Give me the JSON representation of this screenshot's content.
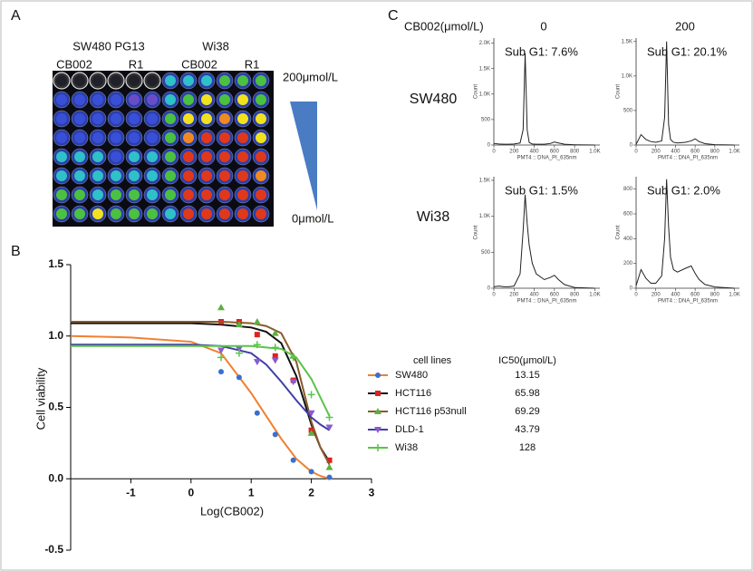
{
  "panel_labels": {
    "a": "A",
    "b": "B",
    "c": "C"
  },
  "plate": {
    "groups": [
      "SW480 PG13",
      "Wi38"
    ],
    "columns": [
      "CB002",
      "R1",
      "CB002",
      "R1"
    ],
    "high_label": "200μmol/L",
    "low_label": "0μmol/L"
  },
  "panel_c": {
    "concentration_label": "CB002(μmol/L)",
    "columns": [
      "0",
      "200"
    ],
    "rows": [
      "SW480",
      "Wi38"
    ]
  },
  "chart_data": [
    {
      "type": "dose_response",
      "x_label": "Log(CB002)",
      "y_label": "Cell viability",
      "xlim": [
        -2,
        3
      ],
      "ylim": [
        -0.5,
        1.5
      ],
      "xticks": [
        -1,
        0,
        1,
        2,
        3
      ],
      "yticks": [
        -0.5,
        {
          "value": 0,
          "label": "0.0"
        },
        0.5,
        {
          "value": 1,
          "label": "1.0"
        },
        1.5
      ],
      "legend_header": [
        "cell lines",
        "IC50(μmol/L)"
      ],
      "x": [
        0.5,
        0.8,
        1.1,
        1.4,
        1.7,
        2.0,
        2.3
      ],
      "fit_x": [
        -2,
        -1,
        0,
        0.5,
        1,
        1.25,
        1.5,
        1.75,
        2,
        2.15,
        2.3
      ],
      "series": [
        {
          "name": "SW480",
          "color": "#f08030",
          "marker_color": "#3a6fd0",
          "marker": "circle",
          "ic50": 13.15,
          "values": [
            0.75,
            0.71,
            0.46,
            0.31,
            0.13,
            0.05,
            0.01
          ],
          "fit": [
            1.0,
            0.99,
            0.96,
            0.88,
            0.6,
            0.44,
            0.28,
            0.14,
            0.05,
            0.02,
            0.0
          ]
        },
        {
          "name": "HCT116",
          "color": "#111111",
          "marker_color": "#e02020",
          "marker": "square",
          "ic50": 65.98,
          "values": [
            1.1,
            1.1,
            1.01,
            0.86,
            0.69,
            0.34,
            0.13
          ],
          "fit": [
            1.09,
            1.09,
            1.09,
            1.08,
            1.06,
            1.03,
            0.95,
            0.72,
            0.38,
            0.22,
            0.12
          ]
        },
        {
          "name": "HCT116 p53null",
          "color": "#8a5a2a",
          "marker_color": "#5cb040",
          "marker": "triangle",
          "ic50": 69.29,
          "values": [
            1.2,
            1.08,
            1.1,
            1.02,
            0.86,
            0.32,
            0.08
          ],
          "fit": [
            1.1,
            1.1,
            1.1,
            1.1,
            1.09,
            1.07,
            1.02,
            0.82,
            0.4,
            0.22,
            0.1
          ]
        },
        {
          "name": "DLD-1",
          "color": "#3f3fa8",
          "marker_color": "#8a5ad0",
          "marker": "triangle-down",
          "ic50": 43.79,
          "values": [
            0.9,
            0.91,
            0.82,
            0.83,
            0.68,
            0.46,
            0.36
          ],
          "fit": [
            0.94,
            0.94,
            0.94,
            0.93,
            0.88,
            0.8,
            0.68,
            0.55,
            0.43,
            0.38,
            0.34
          ]
        },
        {
          "name": "Wi38",
          "color": "#5cc24b",
          "marker_color": "#5cc24b",
          "marker": "plus",
          "ic50": 128,
          "values": [
            0.85,
            0.88,
            0.94,
            0.92,
            0.85,
            0.59,
            0.43
          ],
          "fit": [
            0.93,
            0.93,
            0.93,
            0.93,
            0.93,
            0.92,
            0.91,
            0.85,
            0.7,
            0.57,
            0.44
          ]
        }
      ]
    },
    {
      "type": "histogram_line",
      "annotation": "Sub G1: 7.6%",
      "x_label": "PMT4 :: DNA_PI_635nm",
      "y_label": "Count",
      "xlim": [
        0,
        1050
      ],
      "ylim": [
        0,
        2100
      ],
      "xticks": [
        0,
        200,
        400,
        600,
        800,
        {
          "value": 1000,
          "label": "1.0K"
        }
      ],
      "yticks": [
        0,
        500,
        {
          "value": 1000,
          "label": "1.0K"
        },
        {
          "value": 1500,
          "label": "1.5K"
        },
        {
          "value": 2000,
          "label": "2.0K"
        }
      ],
      "x": [
        0,
        50,
        100,
        150,
        200,
        260,
        290,
        310,
        330,
        350,
        380,
        420,
        500,
        560,
        600,
        640,
        700,
        800,
        1000
      ],
      "values": [
        30,
        20,
        15,
        15,
        20,
        40,
        300,
        1800,
        300,
        50,
        20,
        15,
        15,
        30,
        60,
        40,
        15,
        5,
        0
      ]
    },
    {
      "type": "histogram_line",
      "annotation": "Sub G1: 20.1%",
      "x_label": "PMT4 :: DNA_PI_635nm",
      "y_label": "Count",
      "xlim": [
        0,
        1050
      ],
      "ylim": [
        0,
        1550
      ],
      "xticks": [
        0,
        200,
        400,
        600,
        800,
        {
          "value": 1000,
          "label": "1.0K"
        }
      ],
      "yticks": [
        0,
        500,
        {
          "value": 1000,
          "label": "1.0K"
        },
        {
          "value": 1500,
          "label": "1.5K"
        }
      ],
      "x": [
        0,
        50,
        100,
        150,
        200,
        260,
        290,
        310,
        330,
        350,
        380,
        420,
        500,
        560,
        600,
        640,
        700,
        800,
        1000
      ],
      "values": [
        10,
        150,
        80,
        50,
        40,
        60,
        400,
        1500,
        300,
        80,
        40,
        30,
        40,
        60,
        90,
        50,
        20,
        5,
        0
      ]
    },
    {
      "type": "histogram_line",
      "annotation": "Sub G1: 1.5%",
      "x_label": "PMT4 :: DNA_PI_635nm",
      "y_label": "Count",
      "xlim": [
        0,
        1050
      ],
      "ylim": [
        0,
        1550
      ],
      "xticks": [
        0,
        200,
        400,
        600,
        800,
        {
          "value": 1000,
          "label": "1.0K"
        }
      ],
      "yticks": [
        0,
        500,
        {
          "value": 1000,
          "label": "1.0K"
        },
        {
          "value": 1500,
          "label": "1.5K"
        }
      ],
      "x": [
        0,
        50,
        100,
        150,
        200,
        260,
        290,
        310,
        330,
        350,
        380,
        420,
        500,
        560,
        600,
        640,
        700,
        800,
        1000
      ],
      "values": [
        20,
        30,
        20,
        20,
        30,
        200,
        800,
        1300,
        900,
        600,
        350,
        200,
        120,
        150,
        180,
        120,
        50,
        10,
        0
      ]
    },
    {
      "type": "histogram_line",
      "annotation": "Sub G1: 2.0%",
      "x_label": "PMT4 :: DNA_PI_635nm",
      "y_label": "Count",
      "xlim": [
        0,
        1050
      ],
      "ylim": [
        0,
        900
      ],
      "xticks": [
        0,
        200,
        400,
        600,
        800,
        {
          "value": 1000,
          "label": "1.0K"
        }
      ],
      "yticks": [
        0,
        200,
        400,
        600,
        800
      ],
      "x": [
        0,
        50,
        100,
        150,
        200,
        260,
        290,
        310,
        330,
        350,
        380,
        420,
        500,
        560,
        600,
        640,
        700,
        800,
        1000
      ],
      "values": [
        20,
        150,
        80,
        40,
        40,
        100,
        400,
        880,
        500,
        250,
        150,
        130,
        160,
        180,
        120,
        70,
        30,
        10,
        0
      ]
    }
  ]
}
